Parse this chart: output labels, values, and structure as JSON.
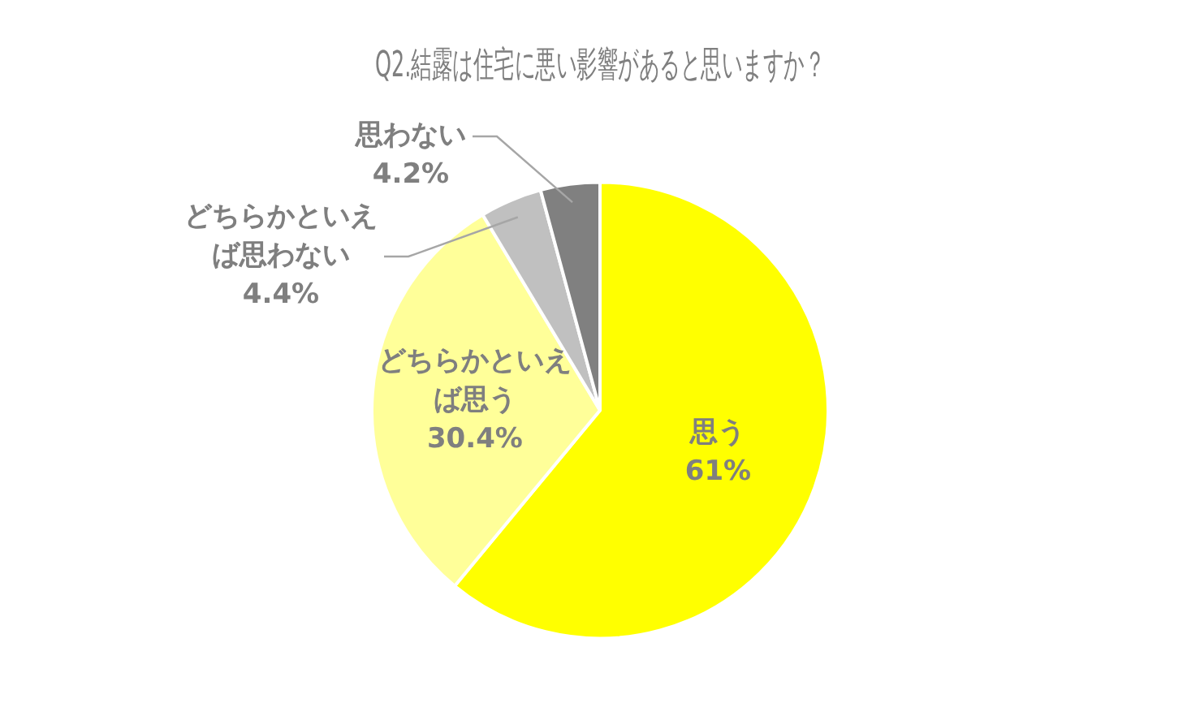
{
  "chart_data": {
    "type": "pie",
    "title": "Q2.結露は住宅に悪い影響があると思いますか？",
    "categories": [
      "思う",
      "どちらかといえば思う",
      "どちらかといえば思わない",
      "思わない"
    ],
    "values": [
      61,
      30.4,
      4.4,
      4.2
    ],
    "colors": [
      "#ffff00",
      "#ffff99",
      "#c0c0c0",
      "#808080"
    ],
    "value_labels": [
      "61%",
      "30.4%",
      "4.4%",
      "4.2%"
    ],
    "legend": false
  }
}
